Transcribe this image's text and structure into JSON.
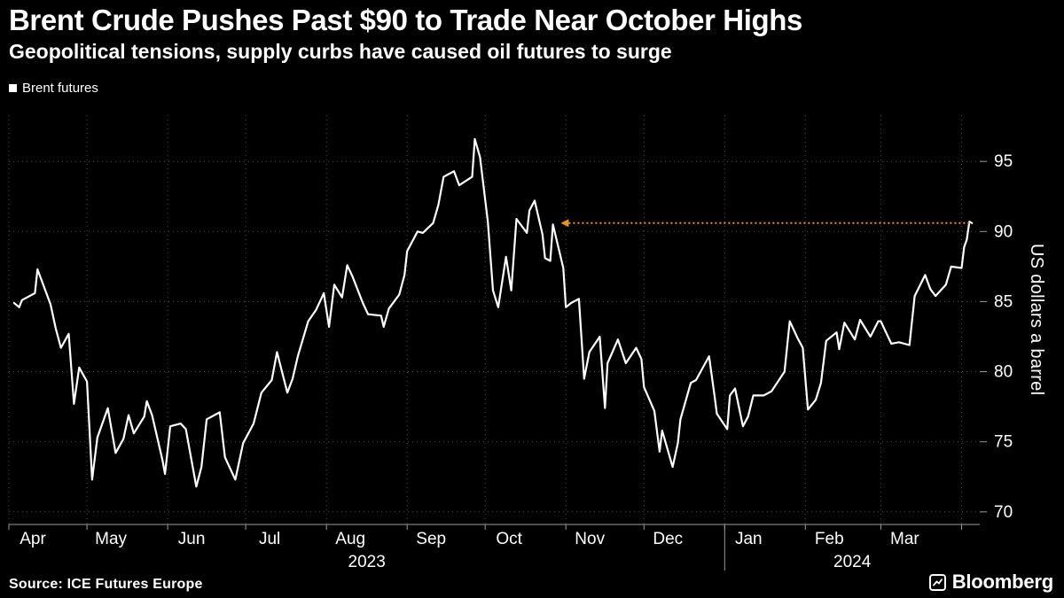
{
  "header": {
    "title": "Brent Crude Pushes Past $90 to Trade Near October Highs",
    "subtitle": "Geopolitical tensions, supply curbs have caused oil futures to surge"
  },
  "legend": {
    "label": "Brent futures",
    "marker_color": "#ffffff"
  },
  "chart_data": {
    "type": "line",
    "title": "Brent Crude Pushes Past $90 to Trade Near October Highs",
    "subtitle": "Geopolitical tensions, supply curbs have caused oil futures to surge",
    "ylabel": "US dollars a barrel",
    "ylim": [
      69.1,
      98.3
    ],
    "yticks": [
      70,
      75,
      80,
      85,
      90,
      95
    ],
    "x_range": [
      "2023-04-01",
      "2024-04-08"
    ],
    "x_tick_labels": [
      "Apr",
      "May",
      "Jun",
      "Jul",
      "Aug",
      "Sep",
      "Oct",
      "Nov",
      "Dec",
      "Jan",
      "Feb",
      "Mar"
    ],
    "year_labels": [
      "2023",
      "2024"
    ],
    "grid": true,
    "legend_position": "top-left",
    "background": "#000000",
    "grid_color": "#4d4d4d",
    "axis_color": "#9a9a9a",
    "annotation": {
      "type": "dotted-arrow-left",
      "value": 90.6,
      "from_date": "2024-04-05",
      "to_date": "2023-10-30",
      "color": "#ec9326"
    },
    "series": [
      {
        "name": "Brent futures",
        "color": "#ffffff",
        "points": [
          [
            "2023-04-03",
            84.9
          ],
          [
            "2023-04-05",
            84.6
          ],
          [
            "2023-04-06",
            85.1
          ],
          [
            "2023-04-11",
            85.6
          ],
          [
            "2023-04-12",
            87.3
          ],
          [
            "2023-04-14",
            86.3
          ],
          [
            "2023-04-17",
            84.8
          ],
          [
            "2023-04-19",
            83.1
          ],
          [
            "2023-04-21",
            81.7
          ],
          [
            "2023-04-24",
            82.7
          ],
          [
            "2023-04-26",
            77.7
          ],
          [
            "2023-04-28",
            80.3
          ],
          [
            "2023-05-01",
            79.3
          ],
          [
            "2023-05-03",
            72.3
          ],
          [
            "2023-05-05",
            75.3
          ],
          [
            "2023-05-09",
            77.4
          ],
          [
            "2023-05-12",
            74.2
          ],
          [
            "2023-05-15",
            75.2
          ],
          [
            "2023-05-17",
            76.9
          ],
          [
            "2023-05-19",
            75.6
          ],
          [
            "2023-05-23",
            76.8
          ],
          [
            "2023-05-24",
            77.9
          ],
          [
            "2023-05-26",
            76.9
          ],
          [
            "2023-05-30",
            73.7
          ],
          [
            "2023-05-31",
            72.7
          ],
          [
            "2023-06-02",
            76.1
          ],
          [
            "2023-06-06",
            76.3
          ],
          [
            "2023-06-08",
            75.9
          ],
          [
            "2023-06-12",
            71.8
          ],
          [
            "2023-06-14",
            73.2
          ],
          [
            "2023-06-16",
            76.6
          ],
          [
            "2023-06-21",
            77.1
          ],
          [
            "2023-06-23",
            73.9
          ],
          [
            "2023-06-27",
            72.3
          ],
          [
            "2023-06-30",
            74.9
          ],
          [
            "2023-07-04",
            76.3
          ],
          [
            "2023-07-07",
            78.5
          ],
          [
            "2023-07-11",
            79.4
          ],
          [
            "2023-07-13",
            81.4
          ],
          [
            "2023-07-17",
            78.5
          ],
          [
            "2023-07-19",
            79.5
          ],
          [
            "2023-07-21",
            81.1
          ],
          [
            "2023-07-25",
            83.6
          ],
          [
            "2023-07-28",
            84.4
          ],
          [
            "2023-07-31",
            85.6
          ],
          [
            "2023-08-02",
            83.2
          ],
          [
            "2023-08-04",
            86.2
          ],
          [
            "2023-08-07",
            85.3
          ],
          [
            "2023-08-09",
            87.6
          ],
          [
            "2023-08-11",
            86.8
          ],
          [
            "2023-08-15",
            84.9
          ],
          [
            "2023-08-17",
            84.1
          ],
          [
            "2023-08-22",
            84.0
          ],
          [
            "2023-08-23",
            83.2
          ],
          [
            "2023-08-25",
            84.5
          ],
          [
            "2023-08-29",
            85.5
          ],
          [
            "2023-08-31",
            86.9
          ],
          [
            "2023-09-01",
            88.6
          ],
          [
            "2023-09-05",
            90.0
          ],
          [
            "2023-09-07",
            89.9
          ],
          [
            "2023-09-11",
            90.6
          ],
          [
            "2023-09-13",
            91.9
          ],
          [
            "2023-09-15",
            93.9
          ],
          [
            "2023-09-19",
            94.3
          ],
          [
            "2023-09-21",
            93.3
          ],
          [
            "2023-09-26",
            93.9
          ],
          [
            "2023-09-27",
            96.6
          ],
          [
            "2023-09-29",
            95.3
          ],
          [
            "2023-10-02",
            90.7
          ],
          [
            "2023-10-04",
            85.8
          ],
          [
            "2023-10-06",
            84.6
          ],
          [
            "2023-10-09",
            88.2
          ],
          [
            "2023-10-11",
            85.8
          ],
          [
            "2023-10-13",
            90.9
          ],
          [
            "2023-10-17",
            89.9
          ],
          [
            "2023-10-18",
            91.5
          ],
          [
            "2023-10-20",
            92.2
          ],
          [
            "2023-10-23",
            89.8
          ],
          [
            "2023-10-24",
            88.1
          ],
          [
            "2023-10-26",
            87.9
          ],
          [
            "2023-10-27",
            90.5
          ],
          [
            "2023-10-31",
            87.4
          ],
          [
            "2023-11-01",
            84.6
          ],
          [
            "2023-11-03",
            84.9
          ],
          [
            "2023-11-06",
            85.2
          ],
          [
            "2023-11-08",
            79.5
          ],
          [
            "2023-11-10",
            81.4
          ],
          [
            "2023-11-14",
            82.5
          ],
          [
            "2023-11-16",
            77.4
          ],
          [
            "2023-11-17",
            80.6
          ],
          [
            "2023-11-21",
            82.3
          ],
          [
            "2023-11-24",
            80.6
          ],
          [
            "2023-11-28",
            81.7
          ],
          [
            "2023-11-30",
            80.9
          ],
          [
            "2023-12-01",
            78.9
          ],
          [
            "2023-12-05",
            77.2
          ],
          [
            "2023-12-07",
            74.3
          ],
          [
            "2023-12-08",
            75.8
          ],
          [
            "2023-12-12",
            73.2
          ],
          [
            "2023-12-14",
            74.9
          ],
          [
            "2023-12-15",
            76.6
          ],
          [
            "2023-12-19",
            79.2
          ],
          [
            "2023-12-21",
            79.4
          ],
          [
            "2023-12-26",
            81.1
          ],
          [
            "2023-12-28",
            78.4
          ],
          [
            "2023-12-29",
            77.0
          ],
          [
            "2024-01-02",
            75.9
          ],
          [
            "2024-01-03",
            78.3
          ],
          [
            "2024-01-05",
            78.8
          ],
          [
            "2024-01-08",
            76.1
          ],
          [
            "2024-01-10",
            76.8
          ],
          [
            "2024-01-12",
            78.3
          ],
          [
            "2024-01-16",
            78.3
          ],
          [
            "2024-01-19",
            78.6
          ],
          [
            "2024-01-24",
            80.0
          ],
          [
            "2024-01-26",
            83.6
          ],
          [
            "2024-01-29",
            82.4
          ],
          [
            "2024-01-31",
            81.7
          ],
          [
            "2024-02-02",
            77.3
          ],
          [
            "2024-02-05",
            78.0
          ],
          [
            "2024-02-07",
            79.2
          ],
          [
            "2024-02-09",
            82.2
          ],
          [
            "2024-02-13",
            82.8
          ],
          [
            "2024-02-14",
            81.6
          ],
          [
            "2024-02-16",
            83.5
          ],
          [
            "2024-02-20",
            82.3
          ],
          [
            "2024-02-22",
            83.7
          ],
          [
            "2024-02-26",
            82.5
          ],
          [
            "2024-02-29",
            83.6
          ],
          [
            "2024-03-01",
            83.6
          ],
          [
            "2024-03-05",
            82.0
          ],
          [
            "2024-03-08",
            82.1
          ],
          [
            "2024-03-12",
            81.9
          ],
          [
            "2024-03-14",
            85.4
          ],
          [
            "2024-03-18",
            86.9
          ],
          [
            "2024-03-20",
            85.9
          ],
          [
            "2024-03-22",
            85.4
          ],
          [
            "2024-03-26",
            86.2
          ],
          [
            "2024-03-28",
            87.5
          ],
          [
            "2024-04-01",
            87.4
          ],
          [
            "2024-04-02",
            88.9
          ],
          [
            "2024-04-03",
            89.4
          ],
          [
            "2024-04-04",
            90.7
          ],
          [
            "2024-04-05",
            90.6
          ]
        ]
      }
    ]
  },
  "footer": {
    "source": "Source: ICE Futures Europe",
    "brand": "Bloomberg"
  }
}
